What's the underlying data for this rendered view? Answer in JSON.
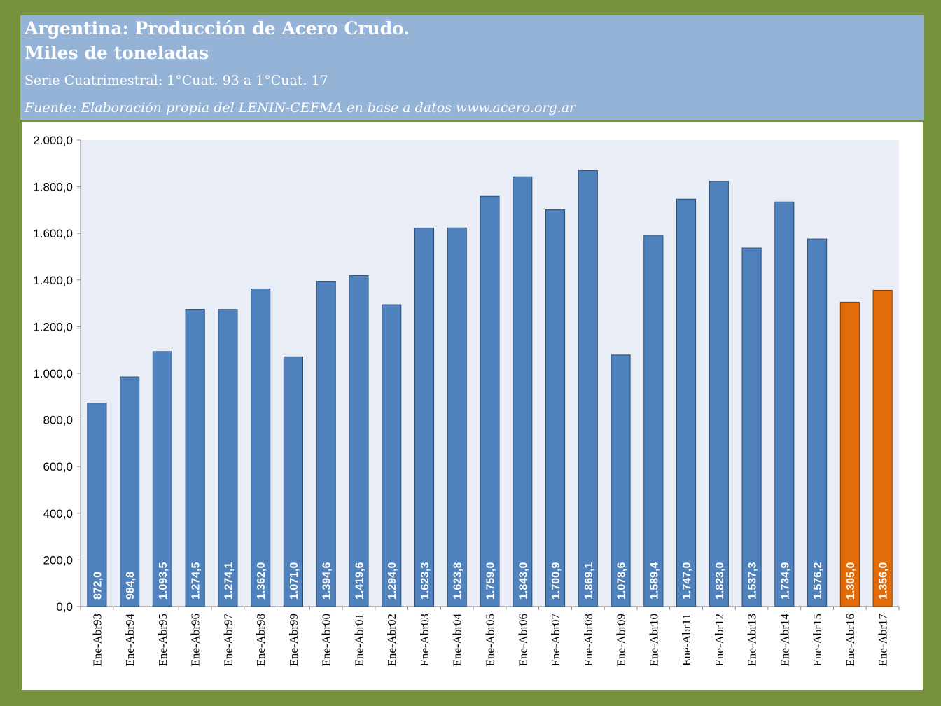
{
  "header": {
    "title_line1": "Argentina: Producción de Acero Crudo.",
    "title_line2": "Miles de toneladas",
    "subtitle": "Serie Cuatrimestral: 1°Cuat. 93 a 1°Cuat. 17",
    "source": "Fuente: Elaboración propia del LENIN-CEFMA en base a datos www.acero.org.ar"
  },
  "colors": {
    "frame": "#76923c",
    "header_bg": "#95b3d7",
    "plot_bg": "#e9edf5",
    "bar_blue": "#4f81bd",
    "bar_orange": "#e36c0a"
  },
  "chart_data": {
    "type": "bar",
    "title": "Argentina: Producción de Acero Crudo. Miles de toneladas",
    "ylim": [
      0,
      2000
    ],
    "ytick_step": 200,
    "ytick_labels": [
      "0,0",
      "200,0",
      "400,0",
      "600,0",
      "800,0",
      "1.000,0",
      "1.200,0",
      "1.400,0",
      "1.600,0",
      "1.800,0",
      "2.000,0"
    ],
    "grid": false,
    "categories": [
      "Ene-Abr93",
      "Ene-Abr94",
      "Ene-Abr95",
      "Ene-Abr96",
      "Ene-Abr97",
      "Ene-Abr98",
      "Ene-Abr99",
      "Ene-Abr00",
      "Ene-Abr01",
      "Ene-Abr02",
      "Ene-Abr03",
      "Ene-Abr04",
      "Ene-Abr05",
      "Ene-Abr06",
      "Ene-Abr07",
      "Ene-Abr08",
      "Ene-Abr09",
      "Ene-Abr10",
      "Ene-Abr11",
      "Ene-Abr12",
      "Ene-Abr13",
      "Ene-Abr14",
      "Ene-Abr15",
      "Ene-Abr16",
      "Ene-Abr17"
    ],
    "values": [
      872.0,
      984.8,
      1093.5,
      1274.5,
      1274.1,
      1362.0,
      1071.0,
      1394.6,
      1419.6,
      1294.0,
      1623.3,
      1623.8,
      1759.0,
      1843.0,
      1700.9,
      1869.1,
      1078.6,
      1589.4,
      1747.0,
      1823.0,
      1537.3,
      1734.9,
      1576.2,
      1305.0,
      1356.0
    ],
    "data_labels": [
      "872,0",
      "984,8",
      "1.093,5",
      "1.274,5",
      "1.274,1",
      "1.362,0",
      "1.071,0",
      "1.394,6",
      "1.419,6",
      "1.294,0",
      "1.623,3",
      "1.623,8",
      "1.759,0",
      "1.843,0",
      "1.700,9",
      "1.869,1",
      "1.078,6",
      "1.589,4",
      "1.747,0",
      "1.823,0",
      "1.537,3",
      "1.734,9",
      "1.576,2",
      "1.305,0",
      "1.356,0"
    ],
    "highlighted_categories": [
      "Ene-Abr16",
      "Ene-Abr17"
    ]
  }
}
